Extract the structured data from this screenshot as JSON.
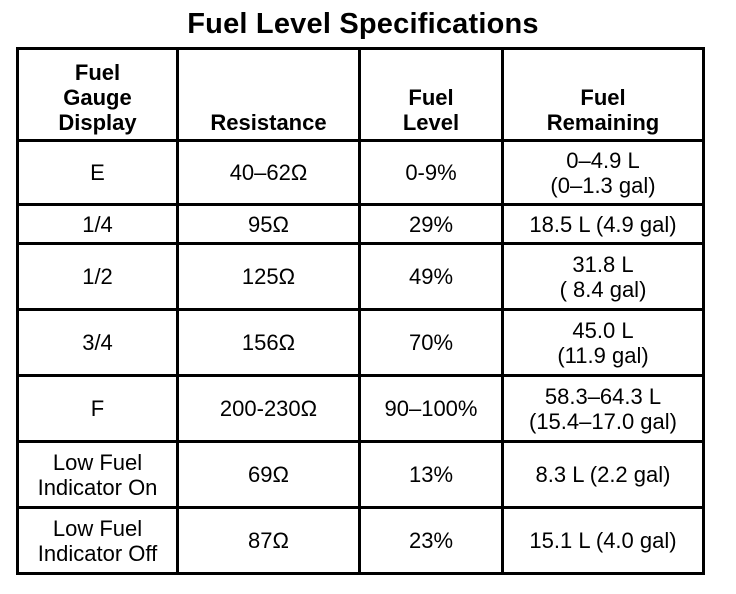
{
  "title": "Fuel Level Specifications",
  "table": {
    "headers": [
      "Fuel\nGauge\nDisplay",
      "Resistance",
      "Fuel\nLevel",
      "Fuel\nRemaining"
    ],
    "rows": [
      {
        "display": "E",
        "resistance": "40–62Ω",
        "level": "0-9%",
        "remaining": "0–4.9 L\n(0–1.3 gal)"
      },
      {
        "display": "1/4",
        "resistance": "95Ω",
        "level": "29%",
        "remaining": "18.5 L (4.9 gal)"
      },
      {
        "display": "1/2",
        "resistance": "125Ω",
        "level": "49%",
        "remaining": "31.8 L\n( 8.4 gal)"
      },
      {
        "display": "3/4",
        "resistance": "156Ω",
        "level": "70%",
        "remaining": "45.0 L\n(11.9 gal)"
      },
      {
        "display": "F",
        "resistance": "200-230Ω",
        "level": "90–100%",
        "remaining": "58.3–64.3 L\n(15.4–17.0 gal)"
      },
      {
        "display": "Low Fuel\nIndicator On",
        "resistance": "69Ω",
        "level": "13%",
        "remaining": "8.3 L (2.2 gal)"
      },
      {
        "display": "Low Fuel\nIndicator Off",
        "resistance": "87Ω",
        "level": "23%",
        "remaining": "15.1 L (4.0 gal)"
      }
    ]
  }
}
